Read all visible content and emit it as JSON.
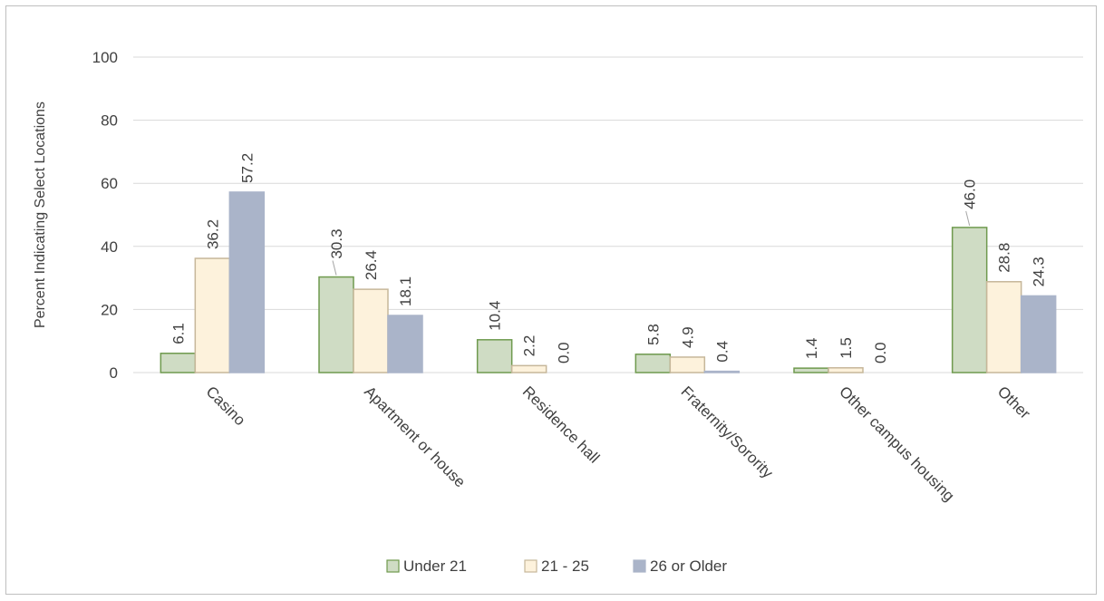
{
  "chart_data": {
    "type": "bar",
    "title": "",
    "xlabel": "",
    "ylabel": "Percent Indicating Select Locations",
    "ylim": [
      0,
      100
    ],
    "yticks": [
      0,
      20,
      40,
      60,
      80,
      100
    ],
    "grid": true,
    "legend_position": "bottom",
    "categories": [
      "Casino",
      "Apartment or house",
      "Residence hall",
      "Fraternity/Sorority",
      "Other campus housing",
      "Other"
    ],
    "series": [
      {
        "name": "Under 21",
        "color": "#cfdcc4",
        "stroke": "#6f9a4e",
        "values": [
          6.1,
          30.3,
          10.4,
          5.8,
          1.4,
          46.0
        ],
        "labels": [
          "6.1",
          "30.3",
          "10.4",
          "5.8",
          "1.4",
          "46.0"
        ]
      },
      {
        "name": "21 - 25",
        "color": "#fdf2dc",
        "stroke": "#c6b79a",
        "values": [
          36.2,
          26.4,
          2.2,
          4.9,
          1.5,
          28.8
        ],
        "labels": [
          "36.2",
          "26.4",
          "2.2",
          "4.9",
          "1.5",
          "28.8"
        ]
      },
      {
        "name": "26 or Older",
        "color": "#aab4c9",
        "stroke": "#aab4c9",
        "values": [
          57.2,
          18.1,
          0.0,
          0.4,
          0.0,
          24.3
        ],
        "labels": [
          "57.2",
          "18.1",
          "0.0",
          "0.4",
          "0.0",
          "24.3"
        ]
      }
    ]
  }
}
